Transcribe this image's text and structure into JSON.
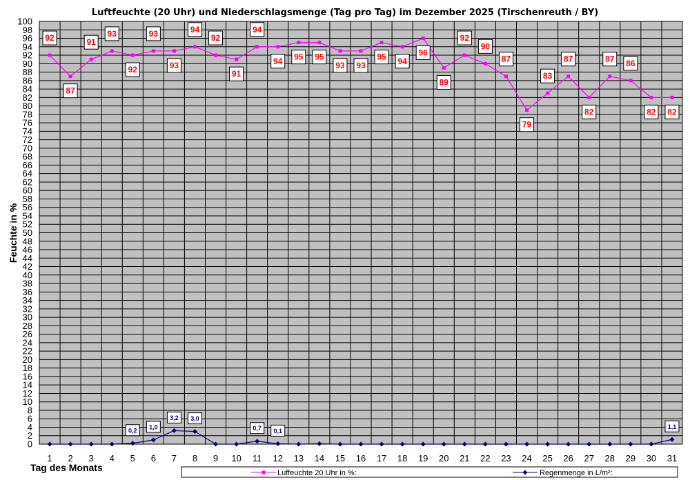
{
  "chart_data": {
    "type": "line",
    "title": "Luftfeuchte (20 Uhr) und Niederschlagsmenge (Tag pro Tag) im Dezember 2025 (Tirschenreuth / BY)",
    "xlabel": "Tag des Monats",
    "ylabel": "Feuchte in %",
    "ylim": [
      0,
      100
    ],
    "ytick_step": 2,
    "grid": true,
    "categories": [
      "1",
      "2",
      "3",
      "4",
      "5",
      "6",
      "7",
      "8",
      "9",
      "10",
      "11",
      "12",
      "13",
      "14",
      "15",
      "16",
      "17",
      "18",
      "19",
      "20",
      "21",
      "22",
      "23",
      "24",
      "25",
      "26",
      "27",
      "28",
      "29",
      "30",
      "31"
    ],
    "series": [
      {
        "name": "Luffeuchte 20 Uhr in %:",
        "color": "#ff00ff",
        "marker": "square",
        "values": [
          92,
          87,
          91,
          93,
          92,
          93,
          93,
          94,
          92,
          91,
          94,
          94,
          95,
          95,
          93,
          93,
          95,
          94,
          96,
          89,
          92,
          90,
          87,
          79,
          83,
          87,
          82,
          87,
          86,
          82,
          82
        ],
        "labels": [
          "92",
          "87",
          "91",
          "93",
          "92",
          "93",
          "93",
          "94",
          "92",
          "91",
          "94",
          "94",
          "95",
          "95",
          "93",
          "93",
          "95",
          "94",
          "96",
          "89",
          "92",
          "90",
          "87",
          "79",
          "83",
          "87",
          "82",
          "87",
          "86",
          "82",
          "82"
        ]
      },
      {
        "name": "Regenmenge in L/m²:",
        "color": "#000080",
        "marker": "diamond",
        "values": [
          0,
          0,
          0,
          0,
          0.2,
          1.0,
          3.2,
          3.0,
          0,
          0,
          0.7,
          0.1,
          0,
          0.1,
          0,
          0,
          0,
          0,
          0,
          0,
          0,
          0,
          0,
          0,
          0,
          0,
          0,
          0,
          0,
          0,
          1.1
        ],
        "labels": [
          "",
          "",
          "",
          "",
          "0,2",
          "1,0",
          "3,2",
          "3,0",
          "",
          "",
          "0,7",
          "0,1",
          "",
          "",
          "",
          "",
          "",
          "",
          "",
          "",
          "",
          "",
          "",
          "",
          "",
          "",
          "",
          "",
          "",
          "",
          "1,1"
        ]
      }
    ],
    "legend": "bottom",
    "colors": {
      "plot_background": "#c0c0c0",
      "grid": "#000000"
    }
  }
}
